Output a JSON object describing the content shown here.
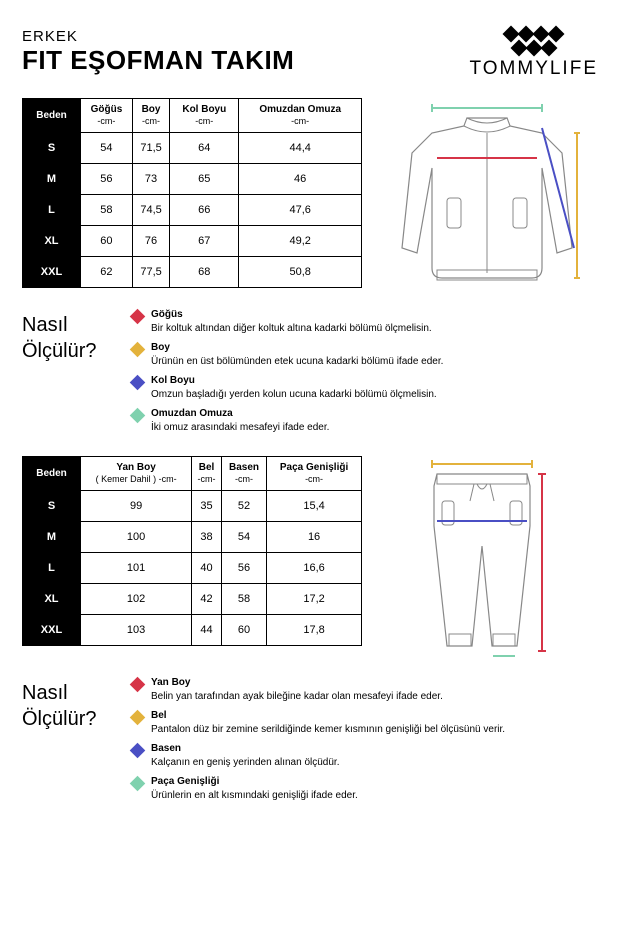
{
  "header": {
    "subtitle": "ERKEK",
    "title": "FIT EŞOFMAN TAKIM",
    "brand": "TOMMYLIFE"
  },
  "table1": {
    "columns": [
      {
        "label": "Beden",
        "sub": ""
      },
      {
        "label": "Göğüs",
        "sub": "-cm-"
      },
      {
        "label": "Boy",
        "sub": "-cm-"
      },
      {
        "label": "Kol Boyu",
        "sub": "-cm-"
      },
      {
        "label": "Omuzdan Omuza",
        "sub": "-cm-"
      }
    ],
    "rows": [
      [
        "S",
        "54",
        "71,5",
        "64",
        "44,4"
      ],
      [
        "M",
        "56",
        "73",
        "65",
        "46"
      ],
      [
        "L",
        "58",
        "74,5",
        "66",
        "47,6"
      ],
      [
        "XL",
        "60",
        "76",
        "67",
        "49,2"
      ],
      [
        "XXL",
        "62",
        "77,5",
        "68",
        "50,8"
      ]
    ]
  },
  "how1": {
    "title1": "Nasıl",
    "title2": "Ölçülür?",
    "items": [
      {
        "color": "#d63447",
        "label": "Göğüs",
        "desc": "Bir koltuk altından diğer koltuk altına kadarki bölümü ölçmelisin."
      },
      {
        "color": "#e3b23c",
        "label": "Boy",
        "desc": "Ürünün en üst bölümünden etek ucuna kadarki bölümü ifade eder."
      },
      {
        "color": "#4a4fc4",
        "label": "Kol Boyu",
        "desc": "Omzun başladığı yerden kolun ucuna kadarki bölümü ölçmelisin."
      },
      {
        "color": "#7fd1ae",
        "label": "Omuzdan Omuza",
        "desc": "İki omuz arasındaki mesafeyi ifade eder."
      }
    ]
  },
  "table2": {
    "columns": [
      {
        "label": "Beden",
        "sub": ""
      },
      {
        "label": "Yan Boy",
        "sub": "( Kemer Dahil ) -cm-"
      },
      {
        "label": "Bel",
        "sub": "-cm-"
      },
      {
        "label": "Basen",
        "sub": "-cm-"
      },
      {
        "label": "Paça Genişliği",
        "sub": "-cm-"
      }
    ],
    "rows": [
      [
        "S",
        "99",
        "35",
        "52",
        "15,4"
      ],
      [
        "M",
        "100",
        "38",
        "54",
        "16"
      ],
      [
        "L",
        "101",
        "40",
        "56",
        "16,6"
      ],
      [
        "XL",
        "102",
        "42",
        "58",
        "17,2"
      ],
      [
        "XXL",
        "103",
        "44",
        "60",
        "17,8"
      ]
    ]
  },
  "how2": {
    "title1": "Nasıl",
    "title2": "Ölçülür?",
    "items": [
      {
        "color": "#d63447",
        "label": "Yan Boy",
        "desc": "Belin yan tarafından ayak bileğine kadar olan mesafeyi ifade eder."
      },
      {
        "color": "#e3b23c",
        "label": "Bel",
        "desc": "Pantalon düz bir zemine serildiğinde kemer kısmının genişliği bel ölçüsünü verir."
      },
      {
        "color": "#4a4fc4",
        "label": "Basen",
        "desc": "Kalçanın en geniş yerinden alınan ölçüdür."
      },
      {
        "color": "#7fd1ae",
        "label": "Paça Genişliği",
        "desc": "Ürünlerin en alt kısmındaki genişliği ifade eder."
      }
    ]
  }
}
